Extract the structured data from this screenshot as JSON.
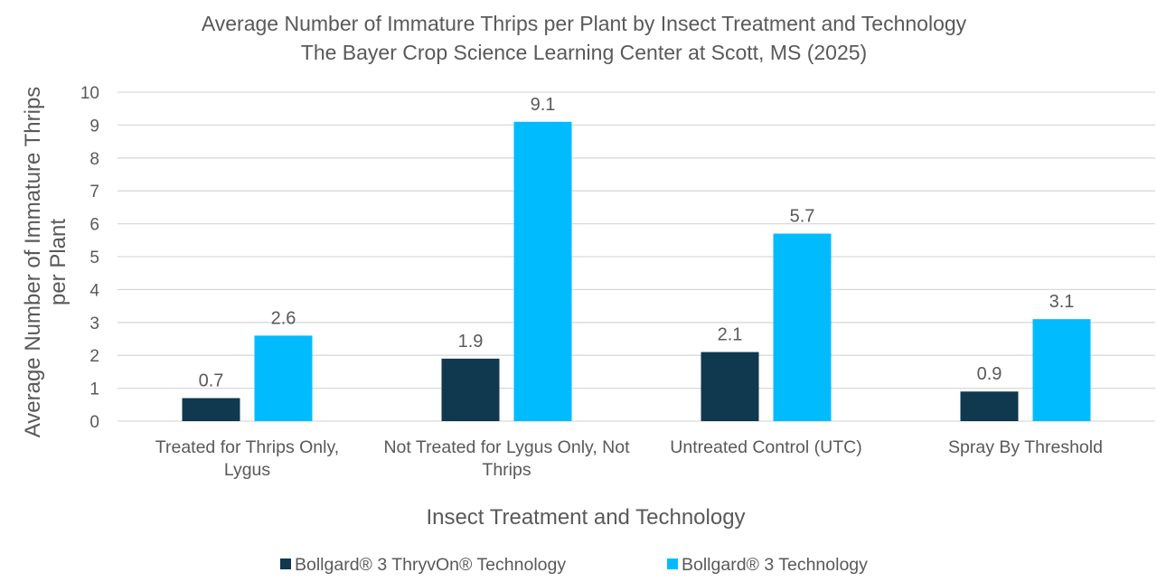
{
  "chart_data": {
    "type": "bar",
    "title": "Average Number of Immature Thrips per Plant by Insect Treatment and Technology",
    "subtitle": "The Bayer Crop Science Learning Center at Scott, MS (2025)",
    "xlabel": "Insect Treatment and Technology",
    "ylabel": [
      "Average Number of Immature Thrips",
      "per Plant"
    ],
    "ylim": [
      0,
      10
    ],
    "yticks": [
      0,
      1,
      2,
      3,
      4,
      5,
      6,
      7,
      8,
      9,
      10
    ],
    "grid": true,
    "legend_position": "bottom",
    "categories": [
      [
        "Treated for Thrips Only,",
        "Lygus"
      ],
      [
        "Not Treated for Lygus Only, Not",
        "Thrips"
      ],
      [
        "Untreated Control (UTC)"
      ],
      [
        "Spray By Threshold"
      ]
    ],
    "series": [
      {
        "name": "Bollgard® 3 ThryvOn® Technology",
        "color": "#10384f",
        "values": [
          0.7,
          1.9,
          2.1,
          0.9
        ]
      },
      {
        "name": "Bollgard® 3 Technology",
        "color": "#00bcff",
        "values": [
          2.6,
          9.1,
          5.7,
          3.1
        ]
      }
    ]
  }
}
